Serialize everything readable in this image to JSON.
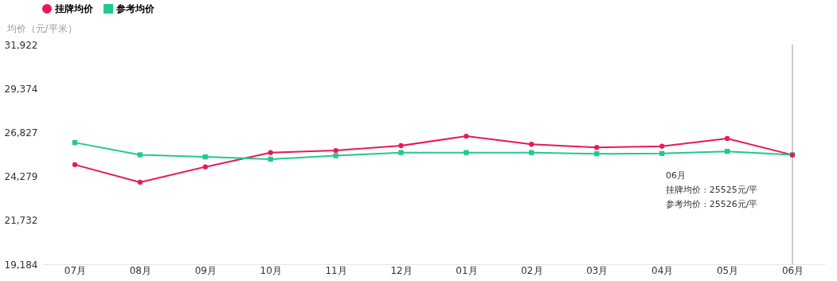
{
  "chart_data": {
    "type": "line",
    "ylabel": "均价（元/平米）",
    "categories": [
      "07月",
      "08月",
      "09月",
      "10月",
      "11月",
      "12月",
      "01月",
      "02月",
      "03月",
      "04月",
      "05月",
      "06月"
    ],
    "series": [
      {
        "name": "挂牌均价",
        "color": "#e8195a",
        "marker": "circle",
        "values": [
          24960,
          23940,
          24830,
          25660,
          25780,
          26060,
          26610,
          26140,
          25960,
          26030,
          26480,
          25525
        ]
      },
      {
        "name": "参考均价",
        "color": "#22c98c",
        "marker": "square",
        "values": [
          26240,
          25530,
          25410,
          25280,
          25480,
          25660,
          25660,
          25660,
          25590,
          25610,
          25730,
          25526
        ]
      }
    ],
    "ylim": [
      19184,
      31922
    ],
    "yticks": [
      {
        "value": 19184,
        "label": "19,184"
      },
      {
        "value": 21732,
        "label": "21,732"
      },
      {
        "value": 24279,
        "label": "24,279"
      },
      {
        "value": 26827,
        "label": "26,827"
      },
      {
        "value": 29374,
        "label": "29,374"
      },
      {
        "value": 31922,
        "label": "31,922"
      }
    ],
    "ref_lines": [
      {
        "axis": "x",
        "value": "06月",
        "color": "#999999"
      }
    ],
    "annotations": [
      "06月",
      "挂牌均价 : 25525元/平",
      "参考均价 : 25526元/平"
    ],
    "grid": false,
    "legend": "top left",
    "line_style": "solid"
  }
}
